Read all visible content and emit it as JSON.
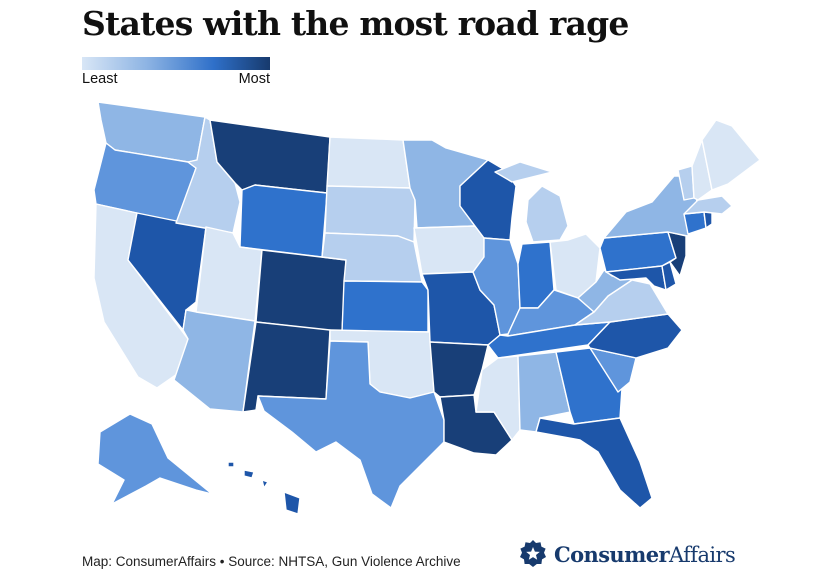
{
  "title": "States with the most road rage",
  "legend": {
    "low_label": "Least",
    "high_label": "Most",
    "ramp": [
      "#d8e6f6",
      "#8cb3e3",
      "#2f70c9",
      "#173a6d"
    ]
  },
  "palette": {
    "1": "#d9e6f5",
    "2": "#b6cfee",
    "3": "#8fb6e5",
    "4": "#5f95dc",
    "5": "#2f72cc",
    "6": "#1e56a9",
    "7": "#183f78"
  },
  "states": {
    "WA": 3,
    "OR": 4,
    "CA": 1,
    "NV": 6,
    "ID": 2,
    "MT": 7,
    "WY": 5,
    "UT": 1,
    "AZ": 3,
    "CO": 7,
    "NM": 7,
    "ND": 1,
    "SD": 2,
    "NE": 2,
    "KS": 5,
    "OK": 1,
    "TX": 4,
    "MN": 3,
    "IA": 1,
    "MO": 6,
    "AR": 7,
    "LA": 7,
    "WI": 6,
    "IL": 4,
    "MI": 2,
    "IN": 5,
    "OH": 1,
    "KY": 4,
    "TN": 5,
    "MS": 1,
    "AL": 3,
    "GA": 5,
    "FL": 6,
    "SC": 4,
    "NC": 6,
    "VA": 2,
    "WV": 3,
    "PA": 5,
    "NY": 3,
    "VT": 2,
    "NH": 1,
    "ME": 1,
    "MA": 2,
    "CT": 5,
    "RI": 6,
    "NJ": 7,
    "DE": 6,
    "MD": 6,
    "AK": 4,
    "HI": 6
  },
  "footer": {
    "credit": "Map: ConsumerAffairs • Source: NHTSA, Gun Violence Archive"
  },
  "logo": {
    "brand_bold": "Consumer",
    "brand_light": "Affairs",
    "icon": "star-badge-icon"
  }
}
